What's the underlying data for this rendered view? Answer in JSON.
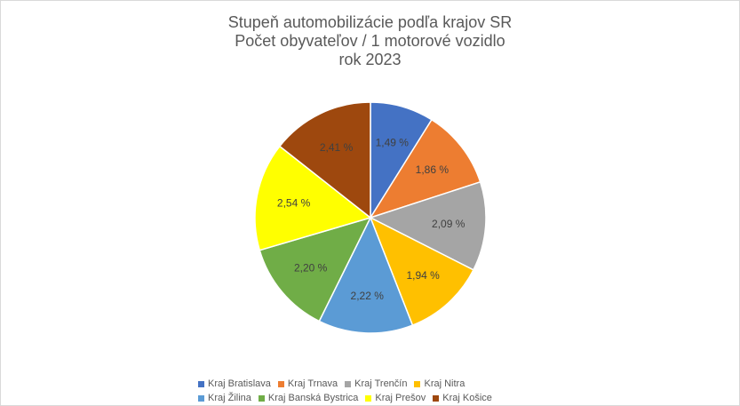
{
  "chart_data": {
    "type": "pie",
    "title_lines": [
      "Stupeň automobilizácie podľa krajov SR",
      "Počet obyvateľov / 1 motorové vozidlo",
      "rok 2023"
    ],
    "categories": [
      "Kraj Bratislava",
      "Kraj Trnava",
      "Kraj Trenčín",
      "Kraj Nitra",
      "Kraj Žilina",
      "Kraj Banská Bystrica",
      "Kraj Prešov",
      "Kraj Košice"
    ],
    "values": [
      1.49,
      1.86,
      2.09,
      1.94,
      2.22,
      2.2,
      2.54,
      2.41
    ],
    "data_labels": [
      "1,49 %",
      "1,86 %",
      "2,09 %",
      "1,94 %",
      "2,22 %",
      "2,20 %",
      "2,54 %",
      "2,41 %"
    ],
    "colors": [
      "#4472C4",
      "#ED7D31",
      "#A5A5A5",
      "#FFC000",
      "#5B9BD5",
      "#70AD47",
      "#FFFF00",
      "#9E480E"
    ],
    "legend_placement": "bottom"
  }
}
